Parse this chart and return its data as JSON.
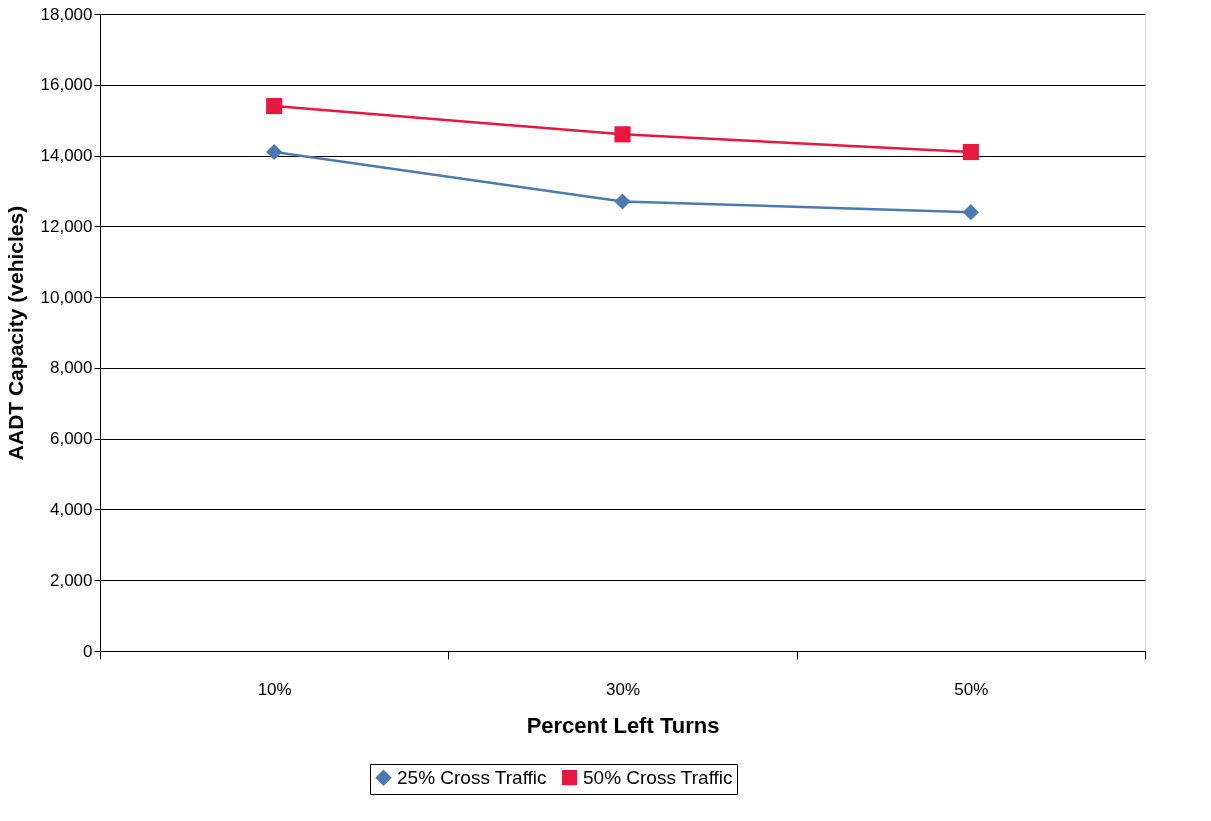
{
  "chart_data": {
    "type": "line",
    "xlabel": "Percent Left Turns",
    "ylabel": "AADT Capacity (vehicles)",
    "categories": [
      "10%",
      "30%",
      "50%"
    ],
    "series": [
      {
        "name": "25% Cross Traffic",
        "color": "#4a7ab0",
        "marker": "diamond",
        "values": [
          14100,
          12700,
          12400
        ]
      },
      {
        "name": "50% Cross Traffic",
        "color": "#e8173f",
        "marker": "square",
        "values": [
          15400,
          14600,
          14100
        ]
      }
    ],
    "ylim": [
      0,
      18000
    ],
    "yticks": [
      0,
      {
        "value": 2000,
        "label": "2,000"
      },
      {
        "value": 4000,
        "label": "4,000"
      },
      {
        "value": 6000,
        "label": "6,000"
      },
      {
        "value": 8000,
        "label": "8,000"
      },
      {
        "value": 10000,
        "label": "10,000"
      },
      {
        "value": 12000,
        "label": "12,000"
      },
      {
        "value": 14000,
        "label": "14,000"
      },
      {
        "value": 16000,
        "label": "16,000"
      },
      {
        "value": 18000,
        "label": "18,000"
      }
    ],
    "grid": "y",
    "legend": "bottom",
    "line_style": "solid"
  }
}
